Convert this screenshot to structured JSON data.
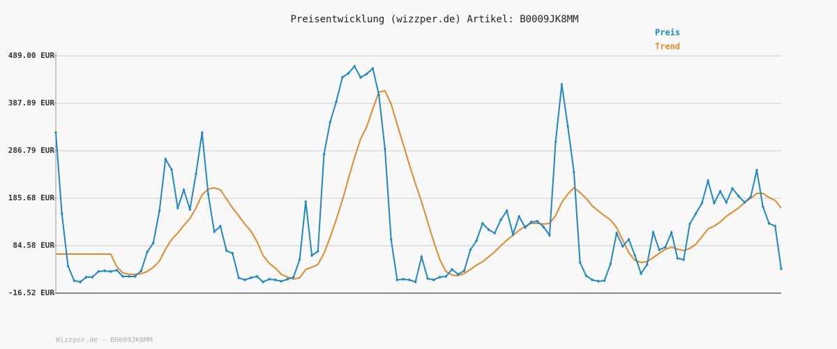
{
  "chart_data": {
    "type": "line",
    "title": "Preisentwicklung (wizzper.de) Artikel: B0009JK8MM",
    "footer": "Wizzper.de - B0009JK8MM",
    "ylim": [
      -16.52,
      489.0
    ],
    "yticks": [
      {
        "value": -16.52,
        "label": "-16.52 EUR"
      },
      {
        "value": 84.58,
        "label": "84.58 EUR"
      },
      {
        "value": 185.68,
        "label": "185.68 EUR"
      },
      {
        "value": 286.79,
        "label": "286.79 EUR"
      },
      {
        "value": 387.89,
        "label": "387.89 EUR"
      },
      {
        "value": 489.0,
        "label": "489.00 EUR"
      }
    ],
    "grid": true,
    "series": [
      {
        "name": "Preis",
        "color": "#1f86c4",
        "markers": true,
        "values": [
          325.4,
          153,
          41.5,
          10.3,
          7.3,
          17.7,
          17.7,
          29.6,
          31.1,
          29.6,
          32.5,
          19.2,
          19.2,
          19.2,
          31.1,
          71.2,
          90.5,
          158.9,
          269,
          246.6,
          164.9,
          203.5,
          161.9,
          237.7,
          325.4,
          194.6,
          114.3,
          126.2,
          74.2,
          68.2,
          16.2,
          11.7,
          16.2,
          19.2,
          7.3,
          13.2,
          11.7,
          8.8,
          13.2,
          17.7,
          54.9,
          178.3,
          63.8,
          72.7,
          279.4,
          347.8,
          390.9,
          442.9,
          451.8,
          466.7,
          442.9,
          450.3,
          462.2,
          405.7,
          291.3,
          98,
          11.7,
          13.2,
          11.7,
          7.3,
          60.8,
          14.7,
          11.7,
          17.7,
          19.2,
          34.1,
          23.6,
          31.1,
          75.7,
          95,
          132.2,
          118.8,
          111.3,
          139.6,
          158.9,
          108.4,
          147,
          123.2,
          135.1,
          136.6,
          124.7,
          106.9,
          306.1,
          428,
          338.8,
          240.7,
          48.9,
          20.7,
          11.7,
          8.8,
          10.3,
          45.9,
          111.3,
          83.1,
          98,
          63.8,
          25.1,
          44.4,
          112.8,
          75.7,
          81.6,
          112.8,
          57.8,
          54.9,
          130.7,
          153,
          175.3,
          222.9,
          175.3,
          200.6,
          176.8,
          206.5,
          190.2,
          176.8,
          188.7,
          245.2,
          167.9,
          132.2,
          126.2,
          35.5
        ]
      },
      {
        "name": "Trend",
        "color": "#e0892a",
        "markers": false,
        "values": [
          66.7,
          66.7,
          66.7,
          66.7,
          66.7,
          66.7,
          66.7,
          66.7,
          66.7,
          66.7,
          40,
          26.6,
          23.6,
          23.6,
          25.1,
          29.6,
          38.5,
          52,
          77.2,
          98,
          111.3,
          127.7,
          142.6,
          164.9,
          193.1,
          205,
          208,
          203.5,
          184.2,
          164.9,
          148.5,
          130.7,
          115.8,
          93.5,
          63.8,
          47.4,
          37,
          23.6,
          17.7,
          13.2,
          16.2,
          34.1,
          38.5,
          44.4,
          68.2,
          102.4,
          139.6,
          181.2,
          227.3,
          271.9,
          312.1,
          337.3,
          376,
          411.7,
          414.6,
          386.4,
          343.3,
          300.1,
          257,
          216.9,
          178.3,
          135.1,
          93.5,
          54.9,
          29.6,
          22.1,
          20.7,
          25.1,
          34.1,
          43,
          50.4,
          60.8,
          71.2,
          84.6,
          96.5,
          106.9,
          117.3,
          126.2,
          132.2,
          132.2,
          130.7,
          132.2,
          148.5,
          176.8,
          194.6,
          208,
          197.6,
          185.7,
          169.3,
          158.9,
          148.5,
          139.6,
          123.2,
          96.5,
          69.7,
          53.4,
          48.9,
          50.4,
          59.3,
          68.2,
          77.2,
          81.6,
          77.2,
          74.2,
          78.6,
          87.6,
          103.9,
          120.3,
          126.2,
          135.1,
          147,
          155.9,
          164.9,
          176.8,
          185.7,
          196.1,
          196.1,
          187.2,
          181.2,
          164.9
        ]
      }
    ]
  }
}
